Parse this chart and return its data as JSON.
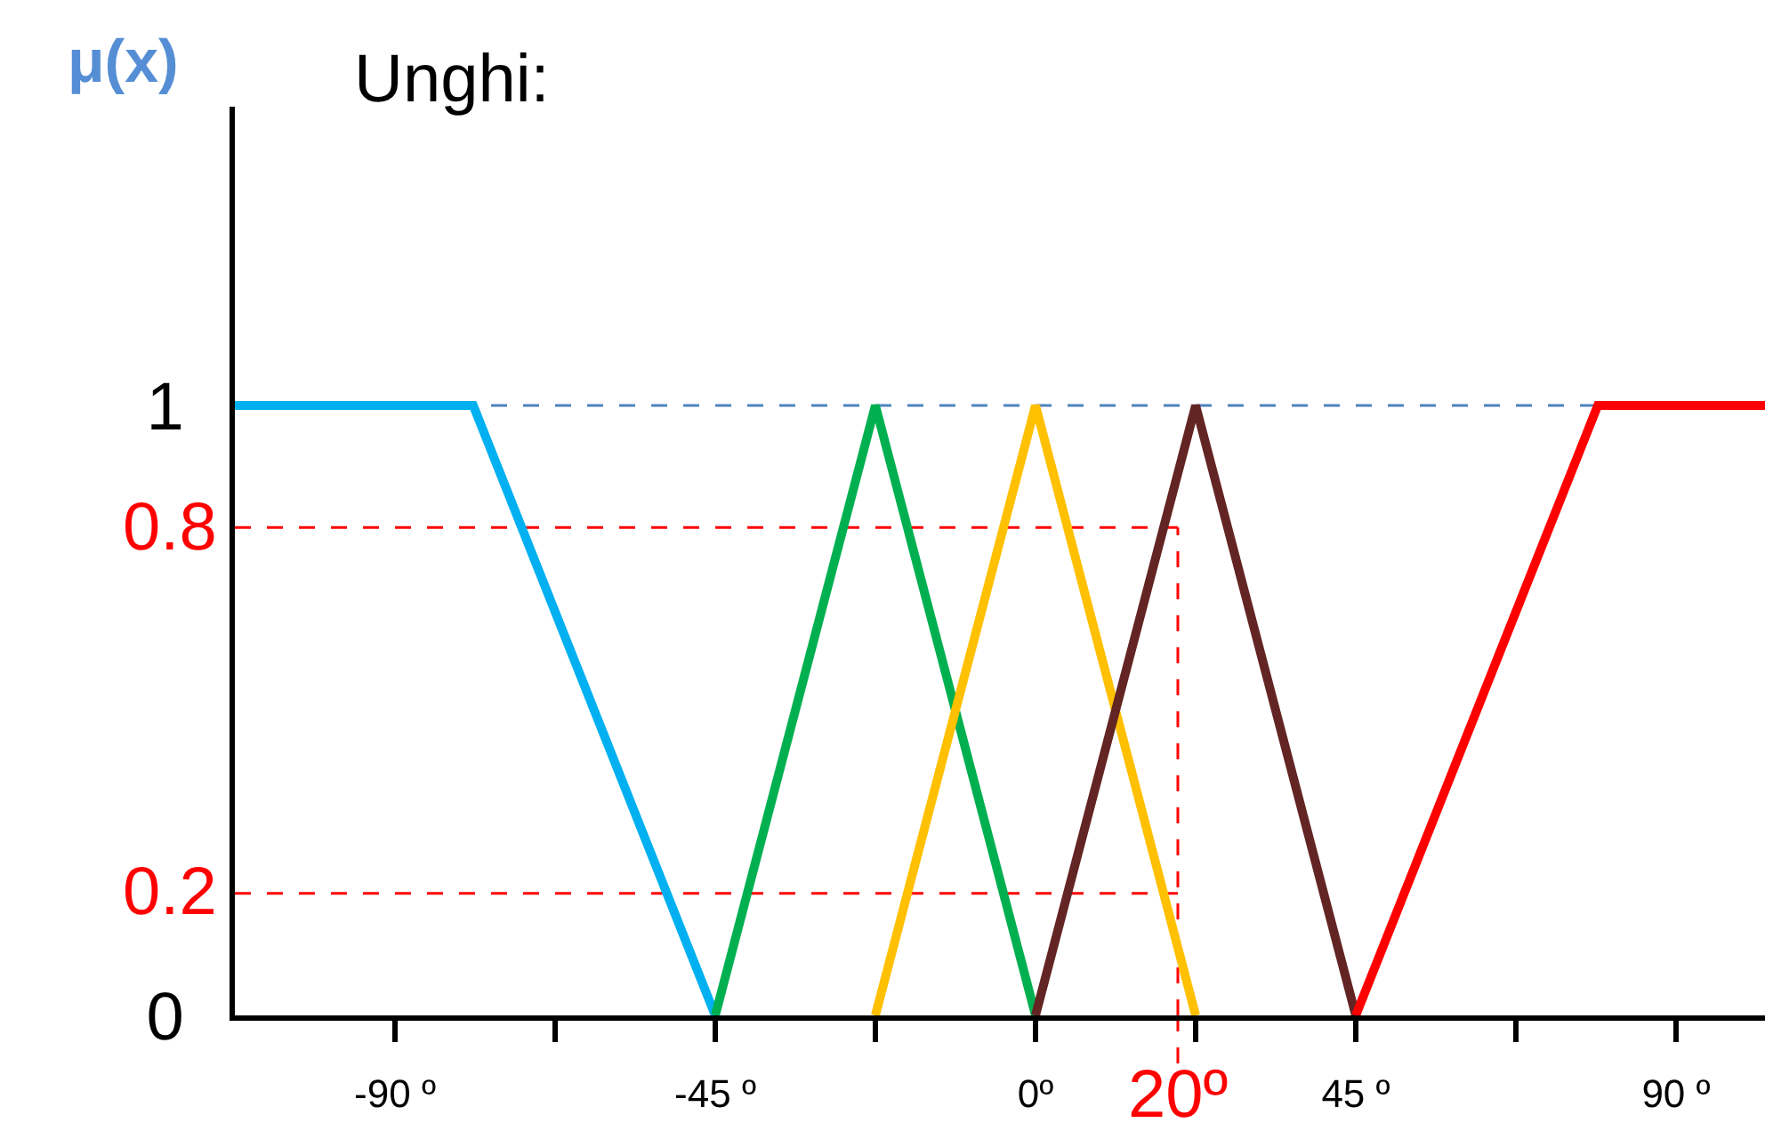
{
  "chart_data": {
    "type": "line",
    "title": "Unghi:",
    "ylabel": "μ(x)",
    "xlim": [
      -112.5,
      102.5
    ],
    "ylim": [
      0,
      1.49
    ],
    "xticks": [
      {
        "value": -90,
        "label": "-90 º"
      },
      {
        "value": -67.5,
        "label": null
      },
      {
        "value": -45,
        "label": "-45 º"
      },
      {
        "value": -22.5,
        "label": null
      },
      {
        "value": 0,
        "label": "0º"
      },
      {
        "value": 22.5,
        "label": null
      },
      {
        "value": 45,
        "label": "45 º"
      },
      {
        "value": 67.5,
        "label": null
      },
      {
        "value": 90,
        "label": "90 º"
      }
    ],
    "yticks": [
      0,
      1
    ],
    "grid": false,
    "marker": "none",
    "line_style": "solid",
    "series": [
      {
        "color": "#00b0f0",
        "x": [
          -112.5,
          -79,
          -45
        ],
        "values": [
          1,
          1,
          0
        ]
      },
      {
        "color": "#00b050",
        "x": [
          -45,
          -22.5,
          0
        ],
        "values": [
          0,
          1,
          0
        ]
      },
      {
        "color": "#ffc000",
        "x": [
          -22.5,
          0,
          22.5
        ],
        "values": [
          0,
          1,
          0
        ]
      },
      {
        "color": "#632523",
        "x": [
          0,
          22.5,
          45
        ],
        "values": [
          0,
          1,
          0
        ]
      },
      {
        "color": "#ff0000",
        "x": [
          45,
          79,
          102.5
        ],
        "values": [
          0,
          1,
          1
        ]
      }
    ],
    "ref_lines": [
      {
        "axis": "y",
        "value": 1,
        "color": "#4f81bd",
        "line_style": "dashed"
      },
      {
        "axis": "y",
        "value": 0.8,
        "label": "0.8",
        "color": "#ff0000",
        "line_style": "dashed"
      },
      {
        "axis": "y",
        "value": 0.2,
        "label": "0.2",
        "color": "#ff0000",
        "line_style": "dashed"
      },
      {
        "axis": "x",
        "value": 20,
        "label": "20º",
        "color": "#ff0000",
        "line_style": "dashed"
      }
    ]
  }
}
